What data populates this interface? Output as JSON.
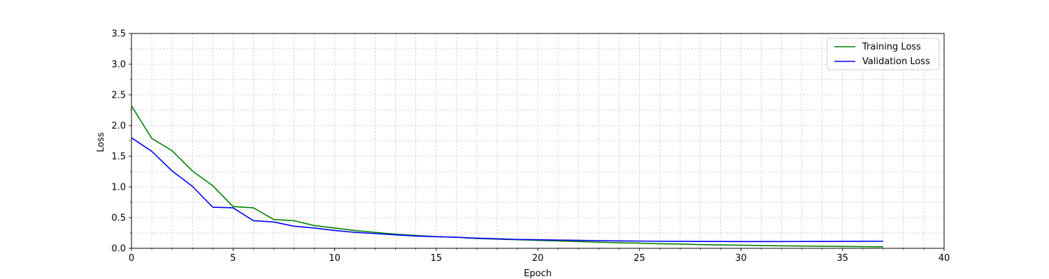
{
  "chart_data": {
    "type": "line",
    "title": "",
    "xlabel": "Epoch",
    "ylabel": "Loss",
    "xlim": [
      0,
      40
    ],
    "ylim": [
      0,
      3.5
    ],
    "xticks": [
      0,
      5,
      10,
      15,
      20,
      25,
      30,
      35,
      40
    ],
    "xtick_labels": [
      "0",
      "5",
      "10",
      "15",
      "20",
      "25",
      "30",
      "35",
      "40"
    ],
    "yticks": [
      0,
      0.5,
      1.0,
      1.5,
      2.0,
      2.5,
      3.0,
      3.5
    ],
    "ytick_labels": [
      "0.0",
      "0.5",
      "1.0",
      "1.5",
      "2.0",
      "2.5",
      "3.0",
      "3.5"
    ],
    "grid": true,
    "legend_position": "top-right",
    "x": [
      0,
      1,
      2,
      3,
      4,
      5,
      6,
      7,
      8,
      9,
      10,
      11,
      12,
      13,
      14,
      15,
      16,
      17,
      18,
      19,
      20,
      21,
      22,
      23,
      24,
      25,
      26,
      27,
      28,
      29,
      30,
      31,
      32,
      33,
      34,
      35,
      36,
      37
    ],
    "series": [
      {
        "name": "Training Loss",
        "color": "#008000",
        "values": [
          2.32,
          1.79,
          1.59,
          1.26,
          1.02,
          0.68,
          0.66,
          0.47,
          0.45,
          0.37,
          0.33,
          0.29,
          0.26,
          0.23,
          0.21,
          0.19,
          0.18,
          0.16,
          0.15,
          0.14,
          0.13,
          0.12,
          0.11,
          0.1,
          0.09,
          0.085,
          0.075,
          0.07,
          0.06,
          0.055,
          0.05,
          0.045,
          0.04,
          0.037,
          0.033,
          0.03,
          0.028,
          0.025
        ]
      },
      {
        "name": "Validation Loss",
        "color": "#0000ff",
        "values": [
          1.8,
          1.58,
          1.26,
          1.01,
          0.67,
          0.66,
          0.45,
          0.43,
          0.36,
          0.33,
          0.29,
          0.26,
          0.24,
          0.22,
          0.2,
          0.19,
          0.18,
          0.165,
          0.155,
          0.145,
          0.14,
          0.135,
          0.13,
          0.125,
          0.12,
          0.118,
          0.115,
          0.113,
          0.112,
          0.111,
          0.11,
          0.11,
          0.11,
          0.111,
          0.112,
          0.113,
          0.114,
          0.115
        ]
      }
    ]
  }
}
